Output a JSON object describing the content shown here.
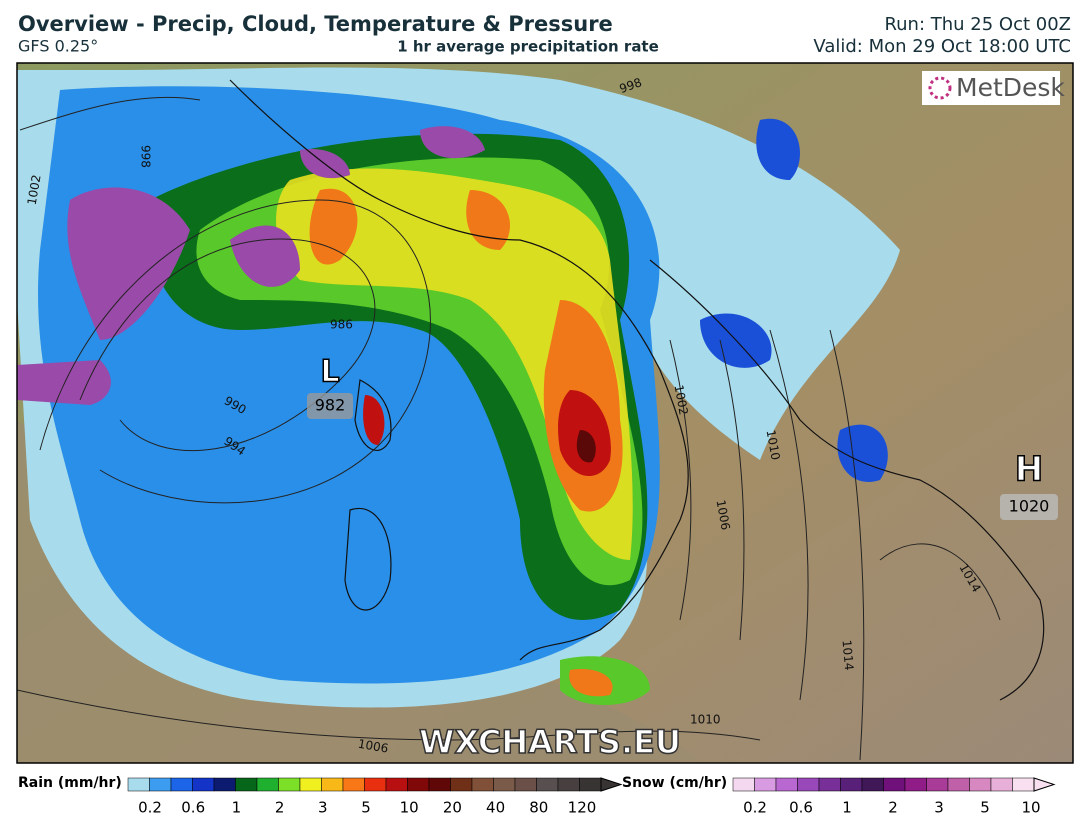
{
  "header": {
    "title": "Overview - Precip, Cloud, Temperature & Pressure",
    "model": "GFS 0.25°",
    "subtitle": "1 hr average precipitation rate",
    "run": "Run: Thu 25 Oct 00Z",
    "valid": "Valid: Mon 29 Oct 18:00 UTC"
  },
  "map": {
    "logo": "MetDesk",
    "watermark": "WXCHARTS.EU",
    "pressure_centers": [
      {
        "symbol": "L",
        "value": "982"
      },
      {
        "symbol": "H",
        "value": "1020"
      }
    ],
    "isobar_labels": [
      "998",
      "998",
      "1002",
      "986",
      "990",
      "994",
      "1002",
      "1010",
      "1006",
      "1014",
      "1010",
      "1006",
      "1014"
    ]
  },
  "legend": {
    "rain": {
      "title": "Rain (mm/hr)",
      "ticks": [
        "0.2",
        "0.6",
        "1",
        "2",
        "3",
        "5",
        "10",
        "20",
        "40",
        "80",
        "120"
      ]
    },
    "snow": {
      "title": "Snow (cm/hr)",
      "ticks": [
        "0.2",
        "0.6",
        "1",
        "2",
        "3",
        "5",
        "10"
      ]
    }
  }
}
